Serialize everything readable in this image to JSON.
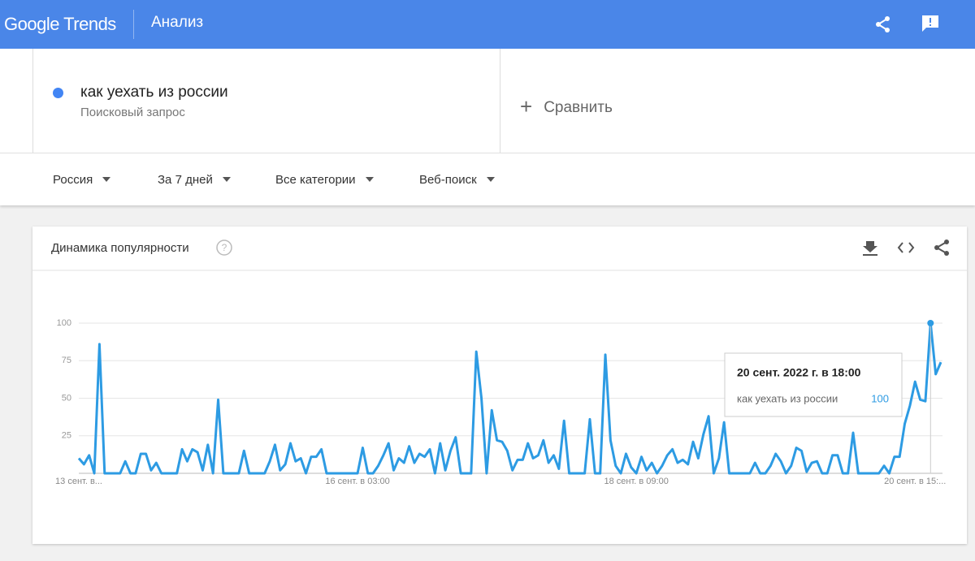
{
  "header": {
    "logo": "Google Trends",
    "title": "Анализ"
  },
  "search": {
    "type": "Поисковый запрос",
    "compare": "Сравнить"
  },
  "filters": [
    "Россия",
    "За 7 дней",
    "Все категории",
    "Веб-поиск"
  ],
  "chart_data": {
    "type": "line",
    "title": "Динамика популярности",
    "categories": [
      "13 сент. в...",
      null,
      null,
      null,
      null,
      null,
      null,
      null,
      null,
      null,
      null,
      null,
      null,
      null,
      null,
      null,
      null,
      null,
      null,
      null,
      null,
      null,
      null,
      null,
      null,
      null,
      null,
      null,
      null,
      null,
      null,
      null,
      null,
      null,
      null,
      null,
      null,
      null,
      null,
      null,
      null,
      null,
      null,
      null,
      null,
      null,
      null,
      null,
      null,
      null,
      null,
      null,
      null,
      null,
      "16 сент. в 03:00",
      null,
      null,
      null,
      null,
      null,
      null,
      null,
      null,
      null,
      null,
      null,
      null,
      null,
      null,
      null,
      null,
      null,
      null,
      null,
      null,
      null,
      null,
      null,
      null,
      null,
      null,
      null,
      null,
      null,
      null,
      null,
      null,
      null,
      null,
      null,
      null,
      null,
      null,
      null,
      null,
      null,
      null,
      null,
      null,
      null,
      null,
      null,
      null,
      null,
      null,
      null,
      null,
      null,
      "18 сент. в 09:00",
      null,
      null,
      null,
      null,
      null,
      null,
      null,
      null,
      null,
      null,
      null,
      null,
      null,
      null,
      null,
      null,
      null,
      null,
      null,
      null,
      null,
      null,
      null,
      null,
      null,
      null,
      null,
      null,
      null,
      null,
      null,
      null,
      null,
      null,
      null,
      null,
      null,
      null,
      null,
      null,
      null,
      null,
      null,
      null,
      null,
      null,
      null,
      null,
      null,
      null,
      null,
      null,
      null,
      "20 сент. в 15:...",
      null,
      null,
      null,
      null,
      null
    ],
    "series": [
      {
        "name": "как уехать из россии",
        "color": "#2d9be3",
        "values": [
          10,
          6,
          12,
          0,
          86,
          0,
          0,
          0,
          0,
          8,
          0,
          0,
          13,
          13,
          2,
          7,
          0,
          0,
          0,
          0,
          16,
          8,
          16,
          14,
          2,
          19,
          0,
          49,
          0,
          0,
          0,
          0,
          15,
          0,
          0,
          0,
          0,
          8,
          19,
          2,
          6,
          20,
          8,
          10,
          0,
          11,
          11,
          16,
          0,
          0,
          0,
          0,
          0,
          0,
          0,
          17,
          0,
          0,
          5,
          12,
          20,
          2,
          10,
          7,
          18,
          7,
          13,
          11,
          16,
          0,
          20,
          2,
          15,
          24,
          0,
          0,
          0,
          81,
          50,
          0,
          42,
          22,
          21,
          15,
          2,
          9,
          9,
          20,
          10,
          12,
          22,
          7,
          12,
          3,
          35,
          0,
          0,
          0,
          0,
          36,
          0,
          0,
          79,
          22,
          5,
          0,
          13,
          4,
          0,
          11,
          2,
          7,
          0,
          5,
          12,
          16,
          7,
          9,
          6,
          21,
          10,
          26,
          38,
          0,
          10,
          34,
          0,
          0,
          0,
          0,
          0,
          7,
          0,
          0,
          5,
          13,
          8,
          0,
          5,
          17,
          15,
          1,
          7,
          8,
          0,
          0,
          12,
          12,
          0,
          0,
          27,
          0,
          0,
          0,
          0,
          0,
          5,
          0,
          11,
          11,
          33,
          45,
          61,
          49,
          48,
          100,
          66,
          74
        ]
      }
    ],
    "ylim": [
      0,
      100
    ],
    "yticks": [
      25,
      50,
      75,
      100
    ],
    "grid": true,
    "tooltip": "20 сент. 2022 г. в 18:00"
  }
}
